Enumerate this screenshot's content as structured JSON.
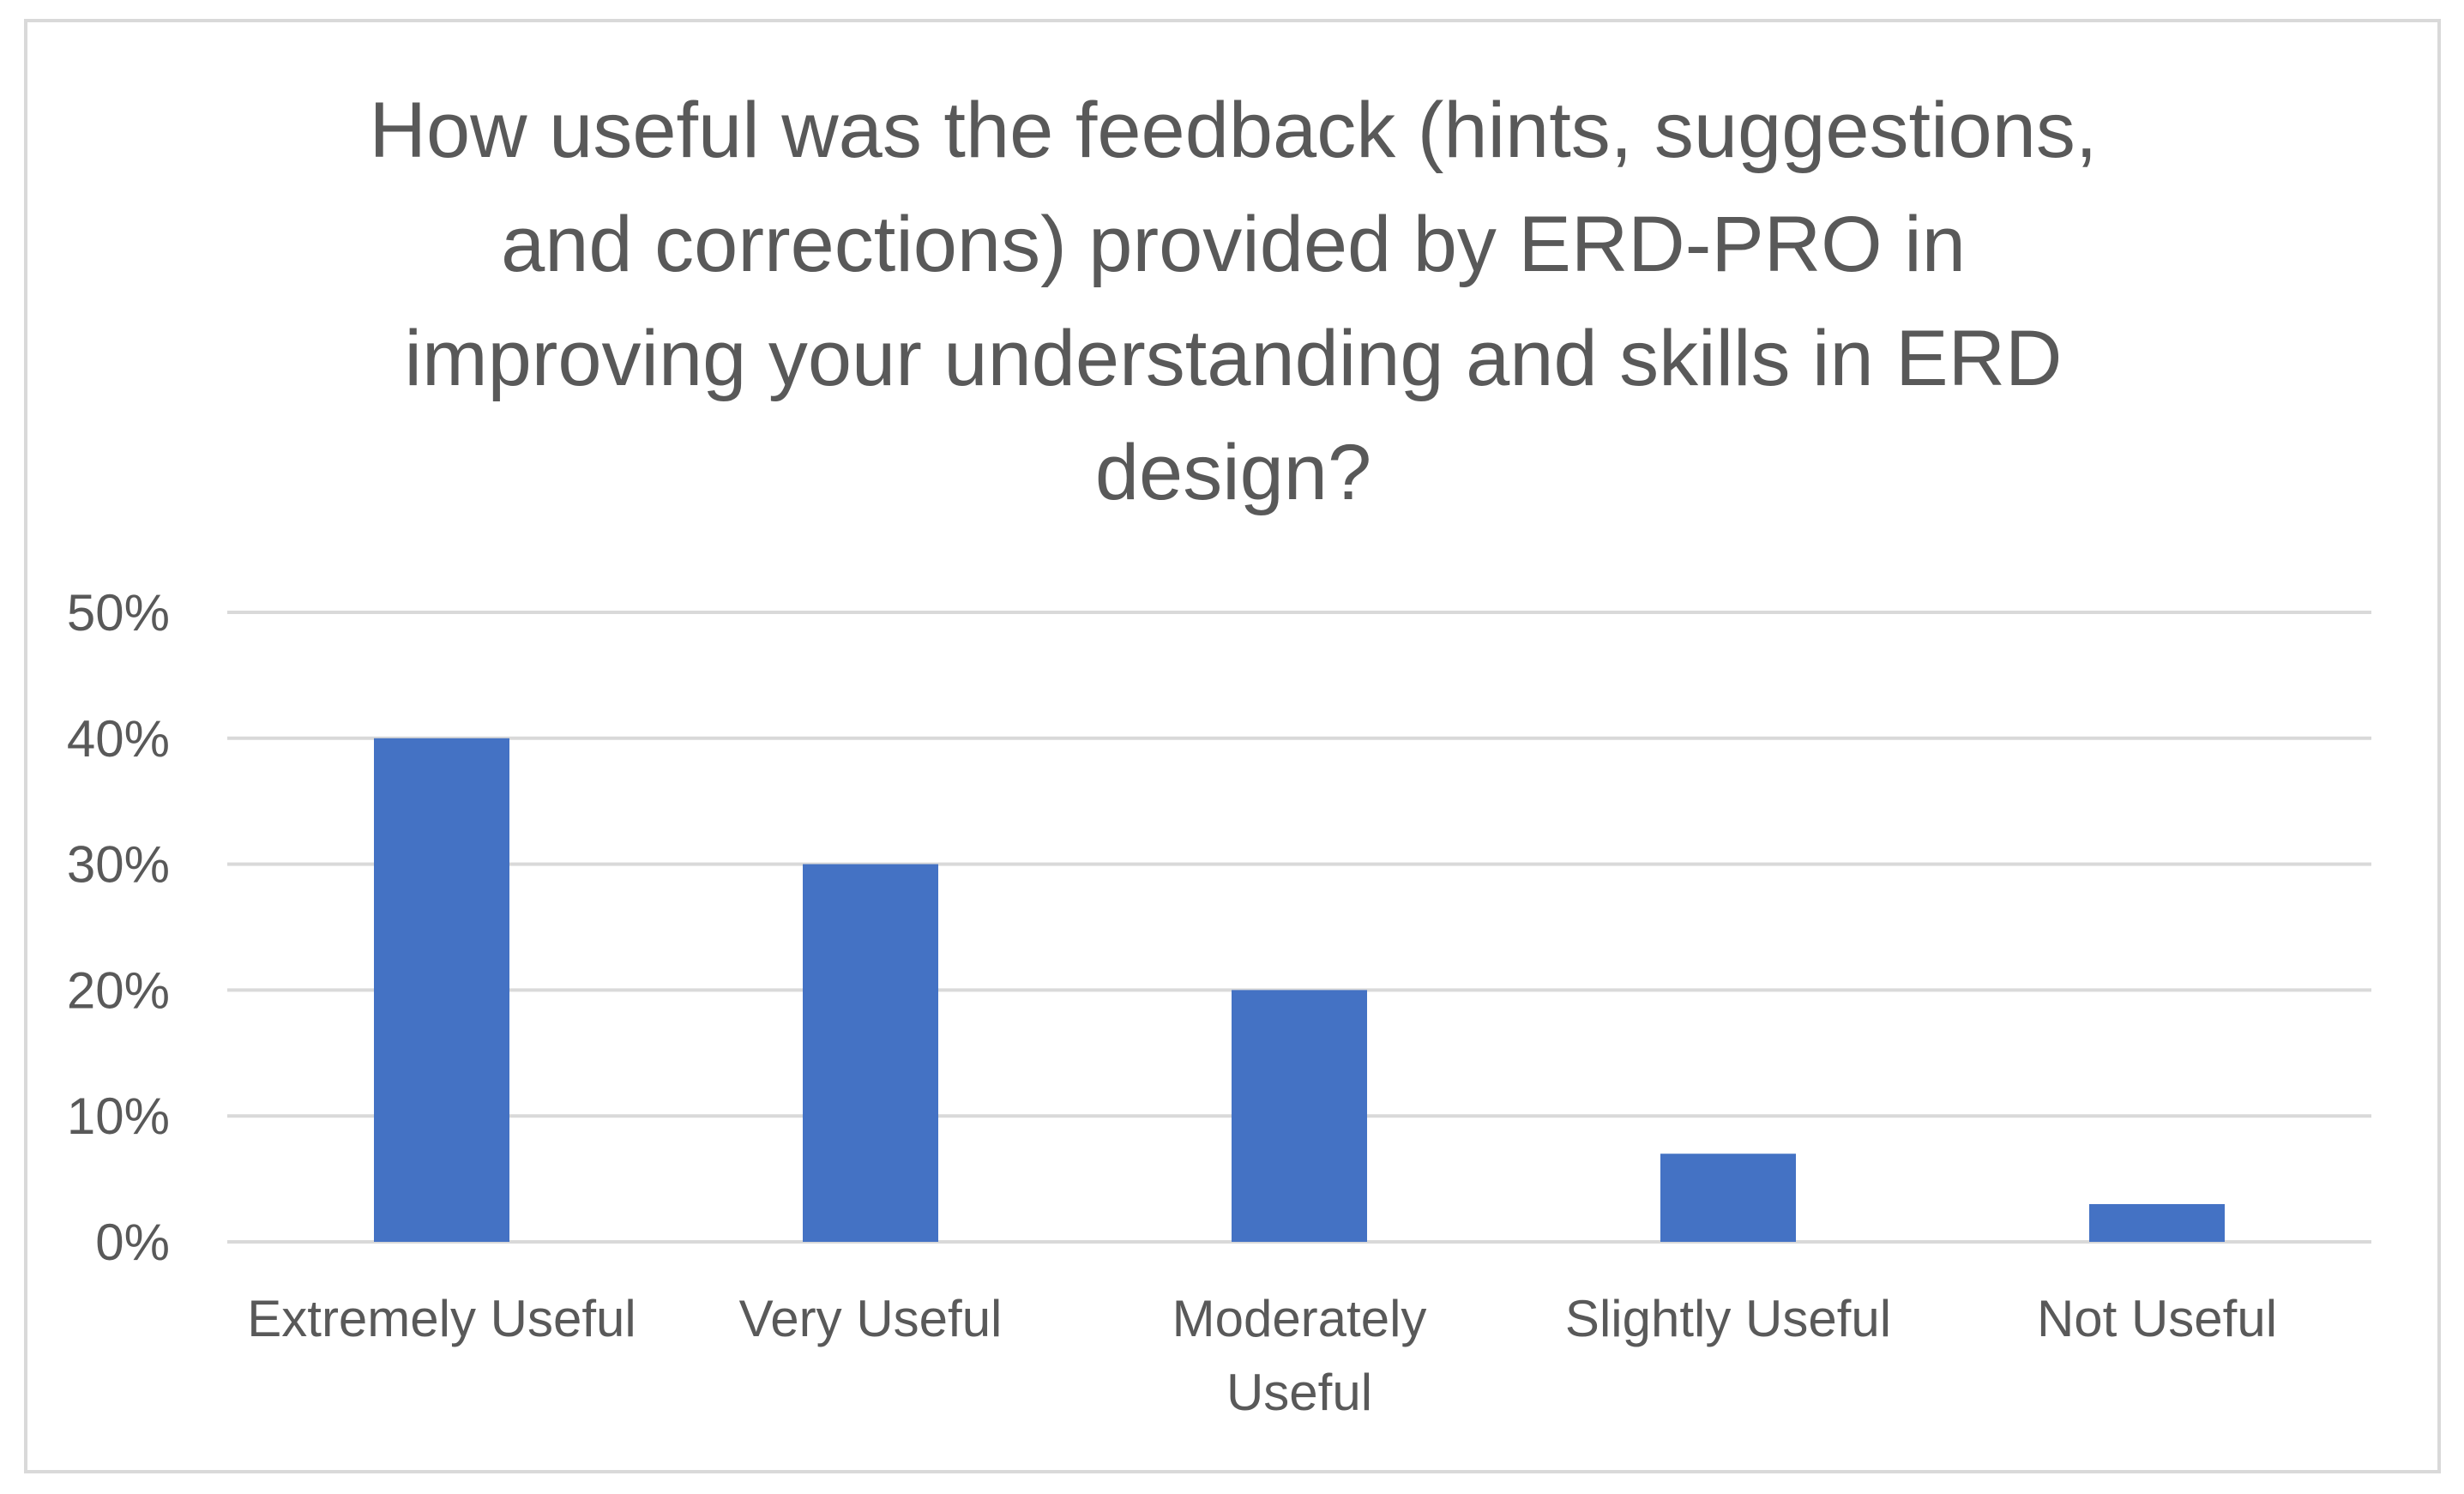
{
  "chart_data": {
    "type": "bar",
    "title_lines": [
      "How useful was the feedback (hints, suggestions,",
      "and corrections) provided by ERD-PRO in",
      "improving your understanding and skills in ERD",
      "design?"
    ],
    "categories": [
      [
        "Extremely Useful"
      ],
      [
        "Very Useful"
      ],
      [
        "Moderately",
        "Useful"
      ],
      [
        "Slightly Useful"
      ],
      [
        "Not Useful"
      ]
    ],
    "values": [
      40,
      30,
      20,
      7,
      3
    ],
    "ylim": [
      0,
      50
    ],
    "yticks": [
      "0%",
      "10%",
      "20%",
      "30%",
      "40%",
      "50%"
    ],
    "grid": true,
    "bar_color": "#4472C4",
    "grid_color": "#d9d9d9",
    "text_color": "#595959"
  }
}
